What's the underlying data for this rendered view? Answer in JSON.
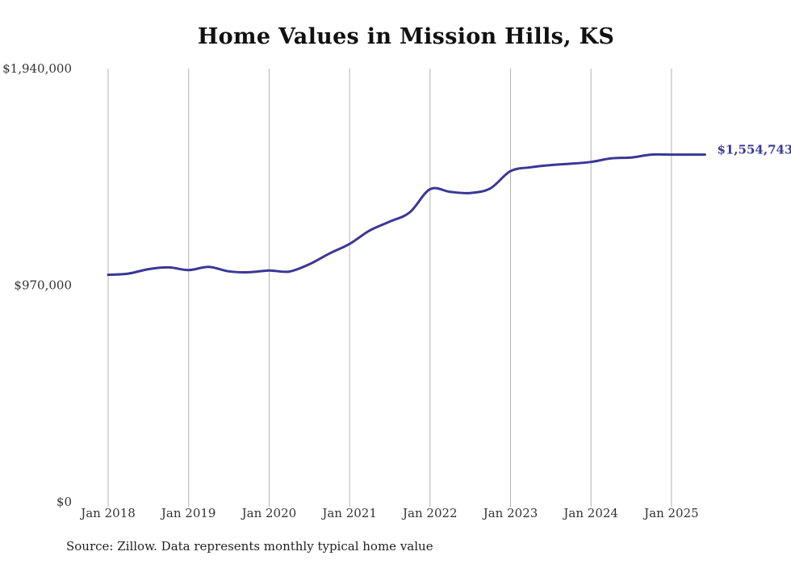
{
  "chart_data": {
    "type": "line",
    "title": "Home Values in Mission Hills, KS",
    "xlabel": "",
    "ylabel": "",
    "ylim": [
      0,
      1940000
    ],
    "y_ticks": [
      "$0",
      "$970,000",
      "$1,940,000"
    ],
    "y_tick_values": [
      0,
      970000,
      1940000
    ],
    "x_ticks": [
      "Jan 2018",
      "Jan 2019",
      "Jan 2020",
      "Jan 2021",
      "Jan 2022",
      "Jan 2023",
      "Jan 2024",
      "Jan 2025"
    ],
    "x_tick_dates": [
      "2018-01",
      "2019-01",
      "2020-01",
      "2021-01",
      "2022-01",
      "2023-01",
      "2024-01",
      "2025-01"
    ],
    "xlim": [
      "2018-01",
      "2025-06"
    ],
    "grid": "vertical",
    "line_color": "#3a3797",
    "end_label": "$1,554,743",
    "series": [
      {
        "x": [
          "2018-01",
          "2018-04",
          "2018-07",
          "2018-10",
          "2019-01",
          "2019-04",
          "2019-07",
          "2019-10",
          "2020-01",
          "2020-04",
          "2020-07",
          "2020-10",
          "2021-01",
          "2021-04",
          "2021-07",
          "2021-10",
          "2022-01",
          "2022-04",
          "2022-07",
          "2022-10",
          "2023-01",
          "2023-04",
          "2023-07",
          "2023-10",
          "2024-01",
          "2024-04",
          "2024-07",
          "2024-10",
          "2025-01",
          "2025-04",
          "2025-06"
        ],
        "values": [
          1017000,
          1022000,
          1042000,
          1050000,
          1038000,
          1052000,
          1032000,
          1028000,
          1036000,
          1031000,
          1064000,
          1112000,
          1155000,
          1215000,
          1255000,
          1297000,
          1400000,
          1388000,
          1383000,
          1404000,
          1481000,
          1498000,
          1508000,
          1514000,
          1522000,
          1538000,
          1542000,
          1554743,
          1554743,
          1554743,
          1554743
        ]
      }
    ]
  },
  "footer": {
    "source_note": "Source: Zillow. Data represents monthly typical home value"
  }
}
